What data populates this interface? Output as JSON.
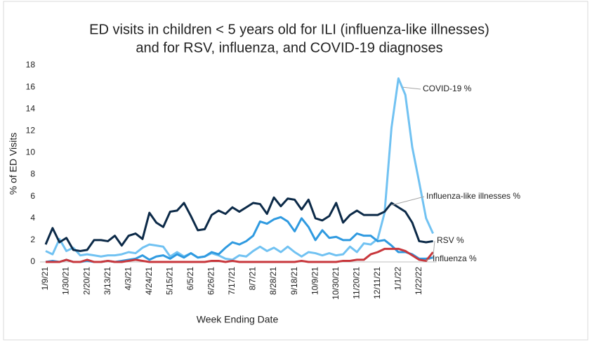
{
  "chart_data": {
    "type": "line",
    "title": [
      "ED visits in children < 5 years old for ILI (influenza-like illnesses)",
      "and for RSV, influenza, and COVID-19 diagnoses"
    ],
    "x_label": "Week Ending Date",
    "y_label": "% of ED Visits",
    "categories": [
      "1/9/21",
      null,
      null,
      "1/30/21",
      null,
      null,
      "2/20/21",
      null,
      null,
      "3/13/21",
      null,
      null,
      "4/3/21",
      null,
      null,
      "4/24/21",
      null,
      null,
      "5/15/21",
      null,
      null,
      "6/5/21",
      null,
      null,
      "6/26/21",
      null,
      null,
      "7/17/21",
      null,
      null,
      "8/7/21",
      null,
      null,
      "8/28/21",
      null,
      null,
      "9/18/21",
      null,
      null,
      "10/9/21",
      null,
      null,
      "10/30/21",
      null,
      null,
      "11/20/21",
      null,
      null,
      "12/11/21",
      null,
      null,
      "1/1/22",
      null,
      null,
      "1/22/22",
      null,
      null
    ],
    "ylim": [
      0,
      18
    ],
    "yticks": [
      0,
      2,
      4,
      6,
      8,
      10,
      12,
      14,
      16,
      18
    ],
    "series": [
      {
        "name": "COVID-19 %",
        "color": "#71c2f2",
        "values": [
          1.0,
          0.7,
          2.1,
          1.0,
          1.3,
          0.6,
          0.7,
          0.6,
          0.5,
          0.6,
          0.6,
          0.7,
          0.9,
          0.8,
          1.3,
          1.6,
          1.5,
          1.4,
          0.5,
          0.9,
          0.5,
          0.8,
          0.4,
          0.5,
          0.8,
          0.6,
          0.3,
          0.2,
          0.6,
          0.5,
          1.0,
          1.4,
          1.0,
          1.3,
          0.9,
          1.4,
          0.9,
          0.5,
          0.9,
          0.8,
          0.6,
          0.8,
          0.6,
          0.7,
          1.4,
          0.9,
          1.7,
          1.6,
          2.1,
          4.5,
          12.3,
          16.8,
          15.3,
          10.5,
          7.3,
          4.0,
          2.6
        ]
      },
      {
        "name": "Influenza-like illnesses %",
        "color": "#0c2a48",
        "values": [
          1.6,
          3.1,
          1.8,
          2.2,
          1.1,
          1.0,
          1.1,
          2.0,
          2.0,
          1.9,
          2.4,
          1.5,
          2.4,
          2.6,
          2.1,
          4.5,
          3.6,
          3.2,
          4.6,
          4.7,
          5.4,
          4.2,
          2.9,
          3.0,
          4.3,
          4.7,
          4.4,
          5.0,
          4.6,
          5.0,
          5.4,
          5.3,
          4.4,
          5.9,
          5.1,
          5.8,
          5.7,
          4.8,
          5.7,
          4.0,
          3.8,
          4.2,
          5.4,
          3.6,
          4.3,
          4.7,
          4.3,
          4.3,
          4.3,
          4.6,
          5.4,
          5.0,
          4.6,
          3.6,
          1.9,
          1.8,
          1.9
        ]
      },
      {
        "name": "RSV %",
        "color": "#2f9ae0",
        "values": [
          0,
          0.1,
          0,
          0.2,
          0,
          0,
          0.1,
          0,
          0,
          0.1,
          0,
          0.1,
          0.2,
          0.3,
          0.6,
          0.2,
          0.5,
          0.6,
          0.3,
          0.7,
          0.4,
          0.8,
          0.4,
          0.5,
          0.9,
          0.7,
          1.3,
          1.8,
          1.6,
          1.9,
          2.4,
          3.7,
          3.5,
          3.9,
          4.1,
          3.7,
          2.8,
          4.0,
          3.2,
          2.0,
          2.9,
          2.2,
          2.3,
          2.0,
          2.0,
          2.6,
          2.4,
          2.4,
          1.9,
          2.0,
          1.5,
          0.9,
          0.9,
          0.7,
          0.3,
          0.3,
          0.4
        ]
      },
      {
        "name": "Influenza %",
        "color": "#c8373c",
        "values": [
          0,
          0,
          0,
          0.2,
          0,
          0,
          0.2,
          0,
          0,
          0.1,
          0,
          0,
          0.1,
          0.2,
          0.1,
          0,
          0,
          0,
          0,
          0,
          0,
          0,
          0,
          0,
          0.1,
          0.1,
          0,
          0.1,
          0,
          0,
          0,
          0,
          0,
          0,
          0,
          0,
          0,
          0.1,
          0,
          0,
          0,
          0,
          0,
          0.1,
          0.1,
          0.2,
          0.2,
          0.7,
          0.9,
          1.2,
          1.2,
          1.2,
          1.0,
          0.6,
          0.2,
          0.1,
          0.9
        ]
      }
    ]
  }
}
